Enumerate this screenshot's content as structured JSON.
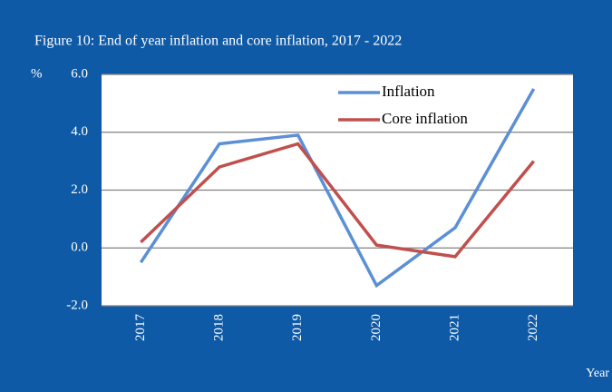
{
  "chart_data": {
    "type": "line",
    "title": "Figure 10: End of year inflation  and core inflation, 2017 - 2022",
    "y_label": "%",
    "x_label": "Year",
    "categories": [
      "2017",
      "2018",
      "2019",
      "2020",
      "2021",
      "2022"
    ],
    "series": [
      {
        "name": "Inflation",
        "color": "#5b8fd6",
        "values": [
          -0.5,
          3.6,
          3.9,
          -1.3,
          0.7,
          5.5
        ]
      },
      {
        "name": "Core inflation",
        "color": "#c0504d",
        "values": [
          0.2,
          2.8,
          3.6,
          0.1,
          -0.3,
          3.0
        ]
      }
    ],
    "ylim": [
      -2,
      6
    ],
    "yticks": [
      {
        "value": -2,
        "label": "-2.0"
      },
      {
        "value": 0,
        "label": "0.0"
      },
      {
        "value": 2,
        "label": "2.0"
      },
      {
        "value": 4,
        "label": "4.0"
      },
      {
        "value": 6,
        "label": "6.0"
      }
    ],
    "grid": true,
    "legend": "top-right"
  }
}
